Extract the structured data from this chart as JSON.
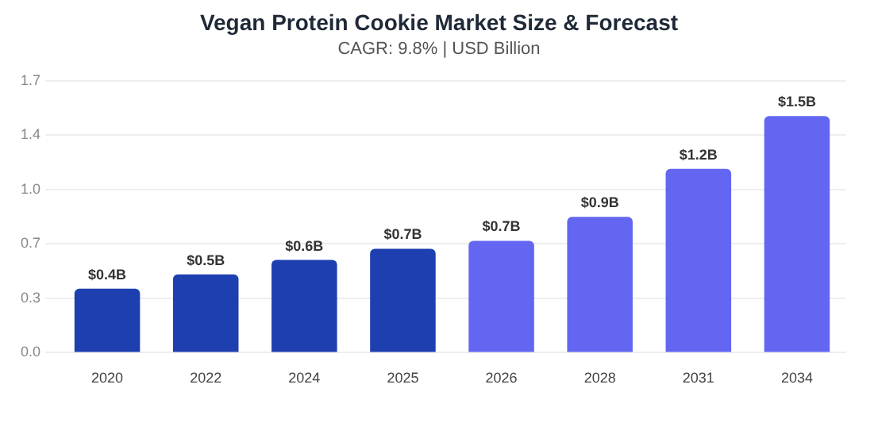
{
  "chart_data": {
    "type": "bar",
    "title": "Vegan Protein Cookie Market Size & Forecast",
    "subtitle": "CAGR: 9.8% | USD Billion",
    "categories": [
      "2020",
      "2022",
      "2024",
      "2025",
      "2026",
      "2028",
      "2031",
      "2034"
    ],
    "values": [
      0.4,
      0.49,
      0.58,
      0.65,
      0.7,
      0.85,
      1.15,
      1.48
    ],
    "colors": [
      "#1e3faf",
      "#1e3faf",
      "#1e3faf",
      "#1e3faf",
      "#6366f1",
      "#6366f1",
      "#6366f1",
      "#6366f1"
    ],
    "value_labels": [
      "$0.4B",
      "$0.5B",
      "$0.6B",
      "$0.7B",
      "$0.7B",
      "$0.9B",
      "$1.2B",
      "$1.5B"
    ],
    "ylim": [
      0,
      1.7
    ],
    "yticks": [
      {
        "value": 0,
        "label": "0.0"
      },
      {
        "value": 0.34,
        "label": "0.3"
      },
      {
        "value": 0.68,
        "label": "0.7"
      },
      {
        "value": 1.02,
        "label": "1.0"
      },
      {
        "value": 1.36,
        "label": "1.4"
      },
      {
        "value": 1.7,
        "label": "1.7"
      }
    ],
    "grid": "y"
  }
}
